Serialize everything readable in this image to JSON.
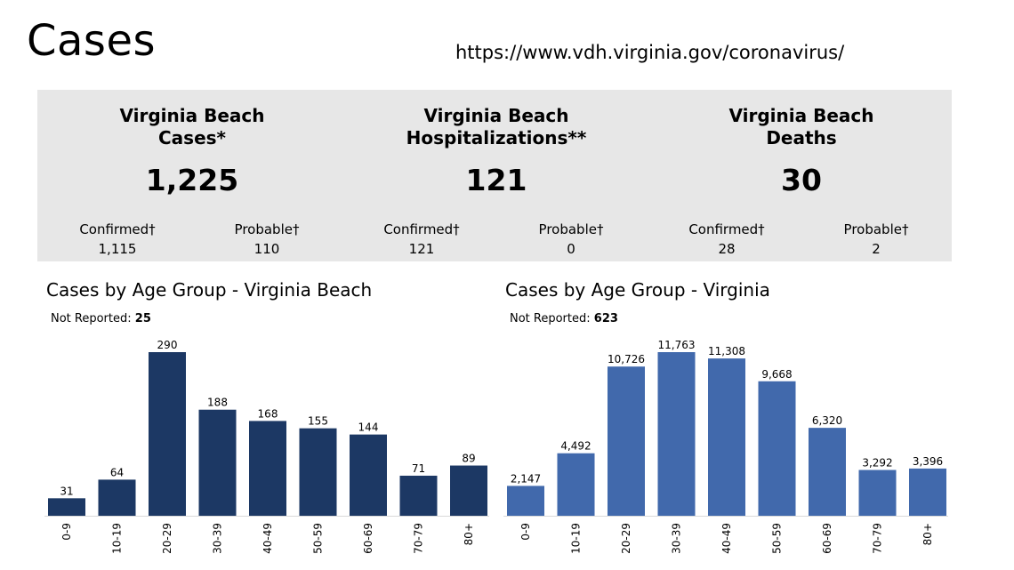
{
  "slide": {
    "title": "Cases",
    "source_url": "https://www.vdh.virginia.gov/coronavirus/"
  },
  "stats": [
    {
      "title": "Virginia Beach\nCases*",
      "total": "1,225",
      "confirmed_label": "Confirmed†",
      "confirmed_value": "1,115",
      "probable_label": "Probable†",
      "probable_value": "110"
    },
    {
      "title": "Virginia Beach\nHospitalizations**",
      "total": "121",
      "confirmed_label": "Confirmed†",
      "confirmed_value": "121",
      "probable_label": "Probable†",
      "probable_value": "0"
    },
    {
      "title": "Virginia Beach\nDeaths",
      "total": "30",
      "confirmed_label": "Confirmed†",
      "confirmed_value": "28",
      "probable_label": "Probable†",
      "probable_value": "2"
    }
  ],
  "chart_data": [
    {
      "type": "bar",
      "title": "Cases by Age Group - Virginia Beach",
      "not_reported_label": "Not Reported:",
      "not_reported_value": "25",
      "categories": [
        "0-9",
        "10-19",
        "20-29",
        "30-39",
        "40-49",
        "50-59",
        "60-69",
        "70-79",
        "80+"
      ],
      "values": [
        31,
        64,
        290,
        188,
        168,
        155,
        144,
        71,
        89
      ],
      "value_labels": [
        "31",
        "64",
        "290",
        "188",
        "168",
        "155",
        "144",
        "71",
        "89"
      ],
      "ylim": [
        0,
        290
      ],
      "color": "#1c3864"
    },
    {
      "type": "bar",
      "title": "Cases by Age Group - Virginia",
      "not_reported_label": "Not Reported:",
      "not_reported_value": "623",
      "categories": [
        "0-9",
        "10-19",
        "20-29",
        "30-39",
        "40-49",
        "50-59",
        "60-69",
        "70-79",
        "80+"
      ],
      "values": [
        2147,
        4492,
        10726,
        11763,
        11308,
        9668,
        6320,
        3292,
        3396
      ],
      "value_labels": [
        "2,147",
        "4,492",
        "10,726",
        "11,763",
        "11,308",
        "9,668",
        "6,320",
        "3,292",
        "3,396"
      ],
      "ylim": [
        0,
        11763
      ],
      "color": "#4169ac"
    }
  ]
}
